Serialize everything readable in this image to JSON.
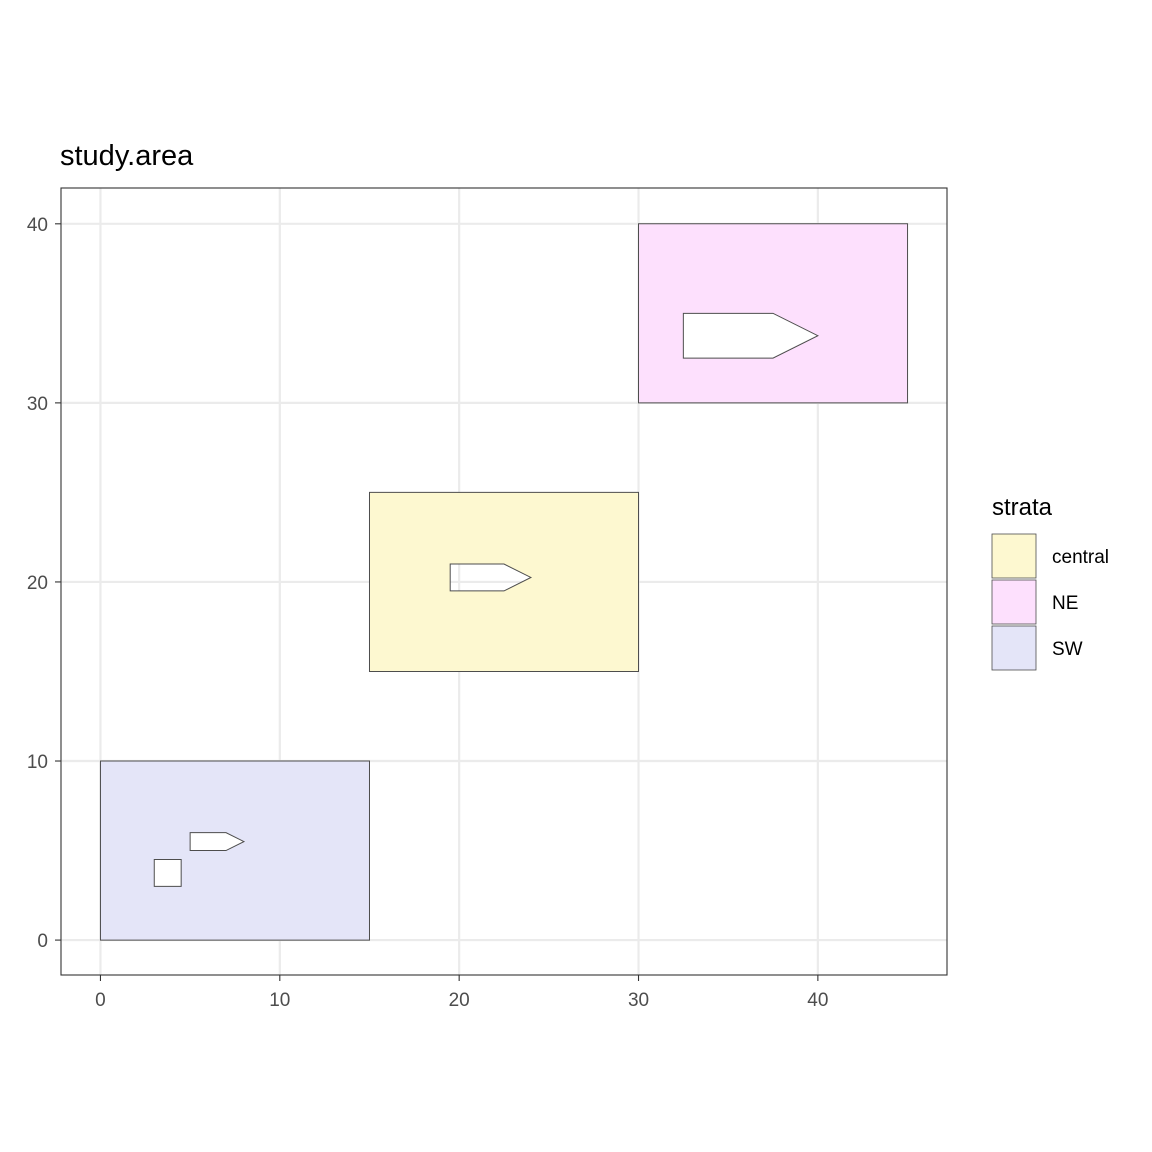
{
  "chart_data": {
    "type": "map",
    "title": "study.area",
    "xlabel": "",
    "ylabel": "",
    "xlim": [
      -2.2,
      47.2
    ],
    "ylim": [
      -1.95,
      42
    ],
    "x_ticks": [
      0,
      10,
      20,
      30,
      40
    ],
    "y_ticks": [
      0,
      10,
      20,
      30,
      40
    ],
    "grid": true,
    "legend": {
      "title": "strata",
      "position": "right",
      "entries": [
        {
          "label": "central",
          "color": "#fdf8d0"
        },
        {
          "label": "NE",
          "color": "#fde0fd"
        },
        {
          "label": "SW",
          "color": "#e4e5f8"
        }
      ]
    },
    "strata": [
      {
        "name": "central",
        "color": "#fdf8d0",
        "outer": [
          [
            15,
            15
          ],
          [
            30,
            15
          ],
          [
            30,
            25
          ],
          [
            15,
            25
          ]
        ],
        "holes": [
          [
            [
              19.5,
              19.5
            ],
            [
              22.5,
              19.5
            ],
            [
              24,
              20.25
            ],
            [
              22.5,
              21
            ],
            [
              19.5,
              21
            ]
          ]
        ]
      },
      {
        "name": "NE",
        "color": "#fde0fd",
        "outer": [
          [
            30,
            30
          ],
          [
            45,
            30
          ],
          [
            45,
            40
          ],
          [
            30,
            40
          ]
        ],
        "holes": [
          [
            [
              32.5,
              32.5
            ],
            [
              37.5,
              32.5
            ],
            [
              40,
              33.75
            ],
            [
              37.5,
              35
            ],
            [
              32.5,
              35
            ]
          ]
        ]
      },
      {
        "name": "SW",
        "color": "#e4e5f8",
        "outer": [
          [
            0,
            0
          ],
          [
            15,
            0
          ],
          [
            15,
            10
          ],
          [
            0,
            10
          ]
        ],
        "holes": [
          [
            [
              5,
              5
            ],
            [
              7,
              5
            ],
            [
              8,
              5.5
            ],
            [
              7,
              6
            ],
            [
              5,
              6
            ]
          ],
          [
            [
              3,
              3
            ],
            [
              4.5,
              3
            ],
            [
              4.5,
              4.5
            ],
            [
              3,
              4.5
            ]
          ]
        ]
      }
    ]
  },
  "colors": {
    "grid": "#ebebeb",
    "panel_border": "#333333",
    "polygon_stroke": "#4d4d4d",
    "axis_text": "#4d4d4d"
  }
}
